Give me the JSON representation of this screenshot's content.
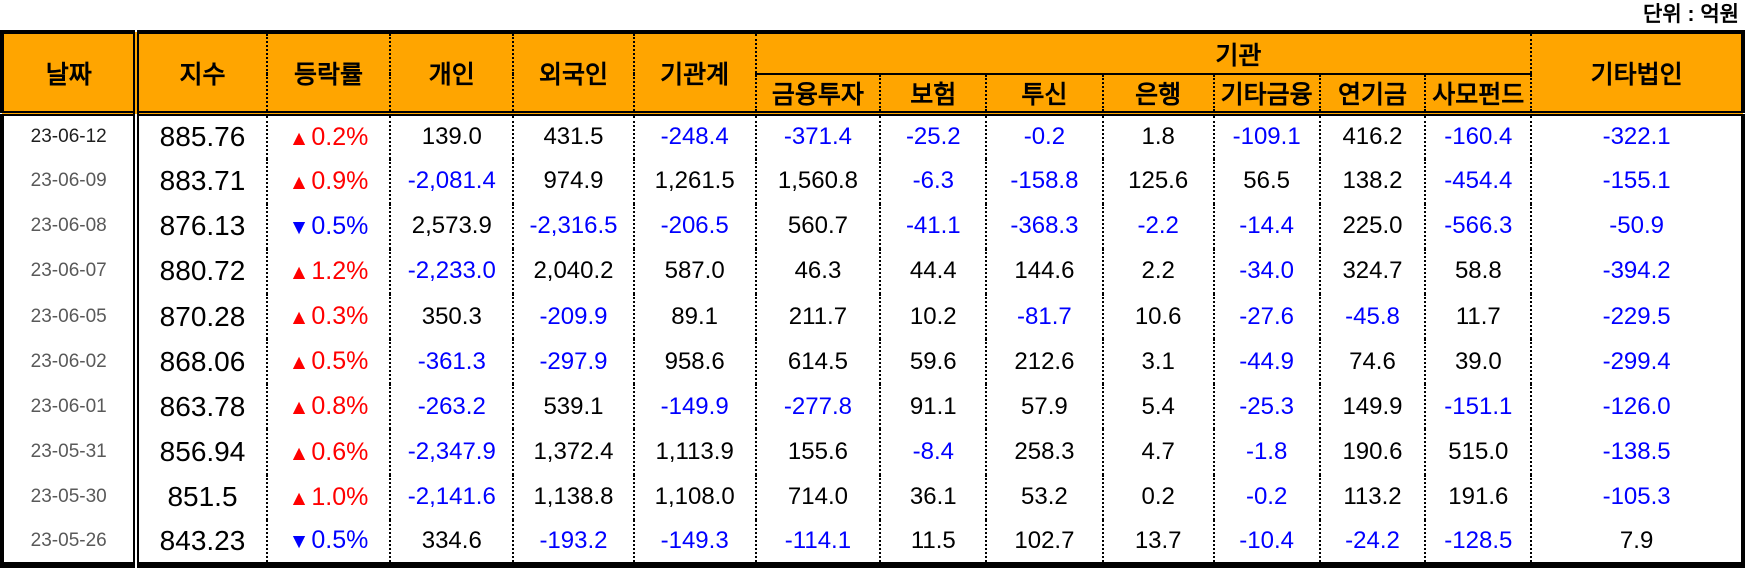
{
  "chart_data": {
    "type": "table",
    "unit_note": "단위 : 억원",
    "columns": {
      "date": "날짜",
      "index": "지수",
      "change_rate": "등락률",
      "individual": "개인",
      "foreigner": "외국인",
      "institutions_total": "기관계",
      "institutions_group": "기관",
      "institutions_sub": [
        "금융투자",
        "보험",
        "투신",
        "은행",
        "기타금융",
        "연기금",
        "사모펀드"
      ],
      "other_corporations": "기타법인"
    },
    "value_keys": [
      "individual",
      "foreigner",
      "institutions-total",
      "financial-investment",
      "insurance",
      "investment-trust",
      "bank",
      "other-finance",
      "pension-fund",
      "private-equity-fund",
      "other-corporations"
    ],
    "rows": [
      {
        "date": "23-06-12",
        "index": "885.76",
        "direction": "up",
        "change_rate": "0.2%",
        "values": [
          "139.0",
          "431.5",
          "-248.4",
          "-371.4",
          "-25.2",
          "-0.2",
          "1.8",
          "-109.1",
          "416.2",
          "-160.4",
          "-322.1"
        ]
      },
      {
        "date": "23-06-09",
        "index": "883.71",
        "direction": "up",
        "change_rate": "0.9%",
        "values": [
          "-2,081.4",
          "974.9",
          "1,261.5",
          "1,560.8",
          "-6.3",
          "-158.8",
          "125.6",
          "56.5",
          "138.2",
          "-454.4",
          "-155.1"
        ]
      },
      {
        "date": "23-06-08",
        "index": "876.13",
        "direction": "down",
        "change_rate": "0.5%",
        "values": [
          "2,573.9",
          "-2,316.5",
          "-206.5",
          "560.7",
          "-41.1",
          "-368.3",
          "-2.2",
          "-14.4",
          "225.0",
          "-566.3",
          "-50.9"
        ]
      },
      {
        "date": "23-06-07",
        "index": "880.72",
        "direction": "up",
        "change_rate": "1.2%",
        "values": [
          "-2,233.0",
          "2,040.2",
          "587.0",
          "46.3",
          "44.4",
          "144.6",
          "2.2",
          "-34.0",
          "324.7",
          "58.8",
          "-394.2"
        ]
      },
      {
        "date": "23-06-05",
        "index": "870.28",
        "direction": "up",
        "change_rate": "0.3%",
        "values": [
          "350.3",
          "-209.9",
          "89.1",
          "211.7",
          "10.2",
          "-81.7",
          "10.6",
          "-27.6",
          "-45.8",
          "11.7",
          "-229.5"
        ]
      },
      {
        "date": "23-06-02",
        "index": "868.06",
        "direction": "up",
        "change_rate": "0.5%",
        "values": [
          "-361.3",
          "-297.9",
          "958.6",
          "614.5",
          "59.6",
          "212.6",
          "3.1",
          "-44.9",
          "74.6",
          "39.0",
          "-299.4"
        ]
      },
      {
        "date": "23-06-01",
        "index": "863.78",
        "direction": "up",
        "change_rate": "0.8%",
        "values": [
          "-263.2",
          "539.1",
          "-149.9",
          "-277.8",
          "91.1",
          "57.9",
          "5.4",
          "-25.3",
          "149.9",
          "-151.1",
          "-126.0"
        ]
      },
      {
        "date": "23-05-31",
        "index": "856.94",
        "direction": "up",
        "change_rate": "0.6%",
        "values": [
          "-2,347.9",
          "1,372.4",
          "1,113.9",
          "155.6",
          "-8.4",
          "258.3",
          "4.7",
          "-1.8",
          "190.6",
          "515.0",
          "-138.5"
        ]
      },
      {
        "date": "23-05-30",
        "index": "851.5",
        "direction": "up",
        "change_rate": "1.0%",
        "values": [
          "-2,141.6",
          "1,138.8",
          "1,108.0",
          "714.0",
          "36.1",
          "53.2",
          "0.2",
          "-0.2",
          "113.2",
          "191.6",
          "-105.3"
        ]
      },
      {
        "date": "23-05-26",
        "index": "843.23",
        "direction": "down",
        "change_rate": "0.5%",
        "values": [
          "334.6",
          "-193.2",
          "-149.3",
          "-114.1",
          "11.5",
          "102.7",
          "13.7",
          "-10.4",
          "-24.2",
          "-128.5",
          "7.9"
        ]
      }
    ]
  },
  "colors": {
    "header_bg": "#FFA500",
    "up_red": "#FF0000",
    "down_blue": "#0000FF",
    "negative_value": "#0000FF",
    "positive_value": "#000000",
    "date_gray": "#595959",
    "border_black": "#000000"
  }
}
